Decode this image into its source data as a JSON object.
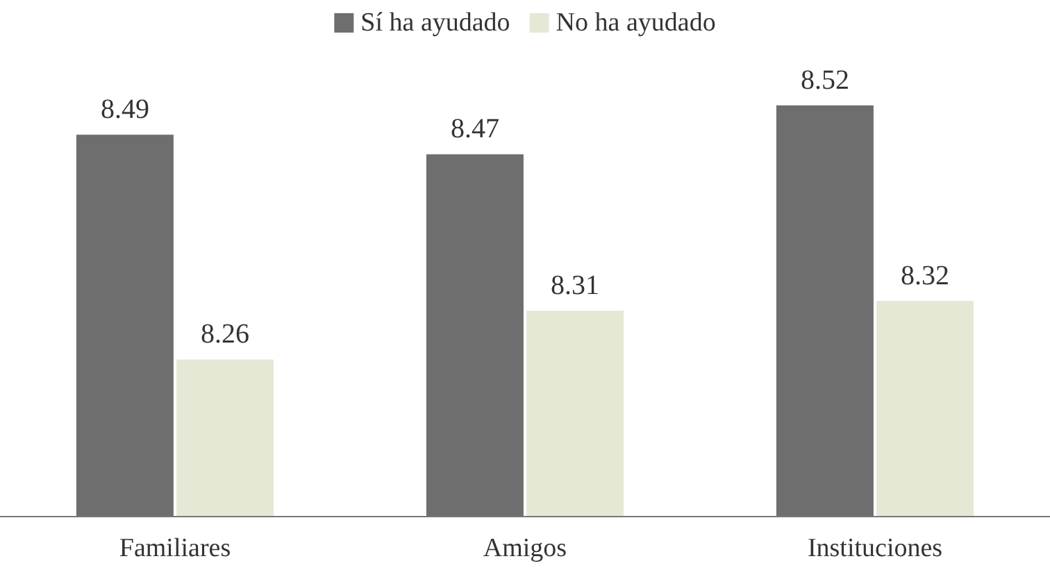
{
  "chart_data": {
    "type": "bar",
    "categories": [
      "Familiares",
      "Amigos",
      "Instituciones"
    ],
    "series": [
      {
        "name": "Sí ha ayudado",
        "color": "#6e6e6e",
        "values": [
          8.49,
          8.47,
          8.52
        ]
      },
      {
        "name": "No ha ayudado",
        "color": "#e6e8d6",
        "values": [
          8.26,
          8.31,
          8.32
        ]
      }
    ],
    "ylim": [
      8.1,
      8.52
    ],
    "data_labels": true,
    "legend": "top"
  }
}
